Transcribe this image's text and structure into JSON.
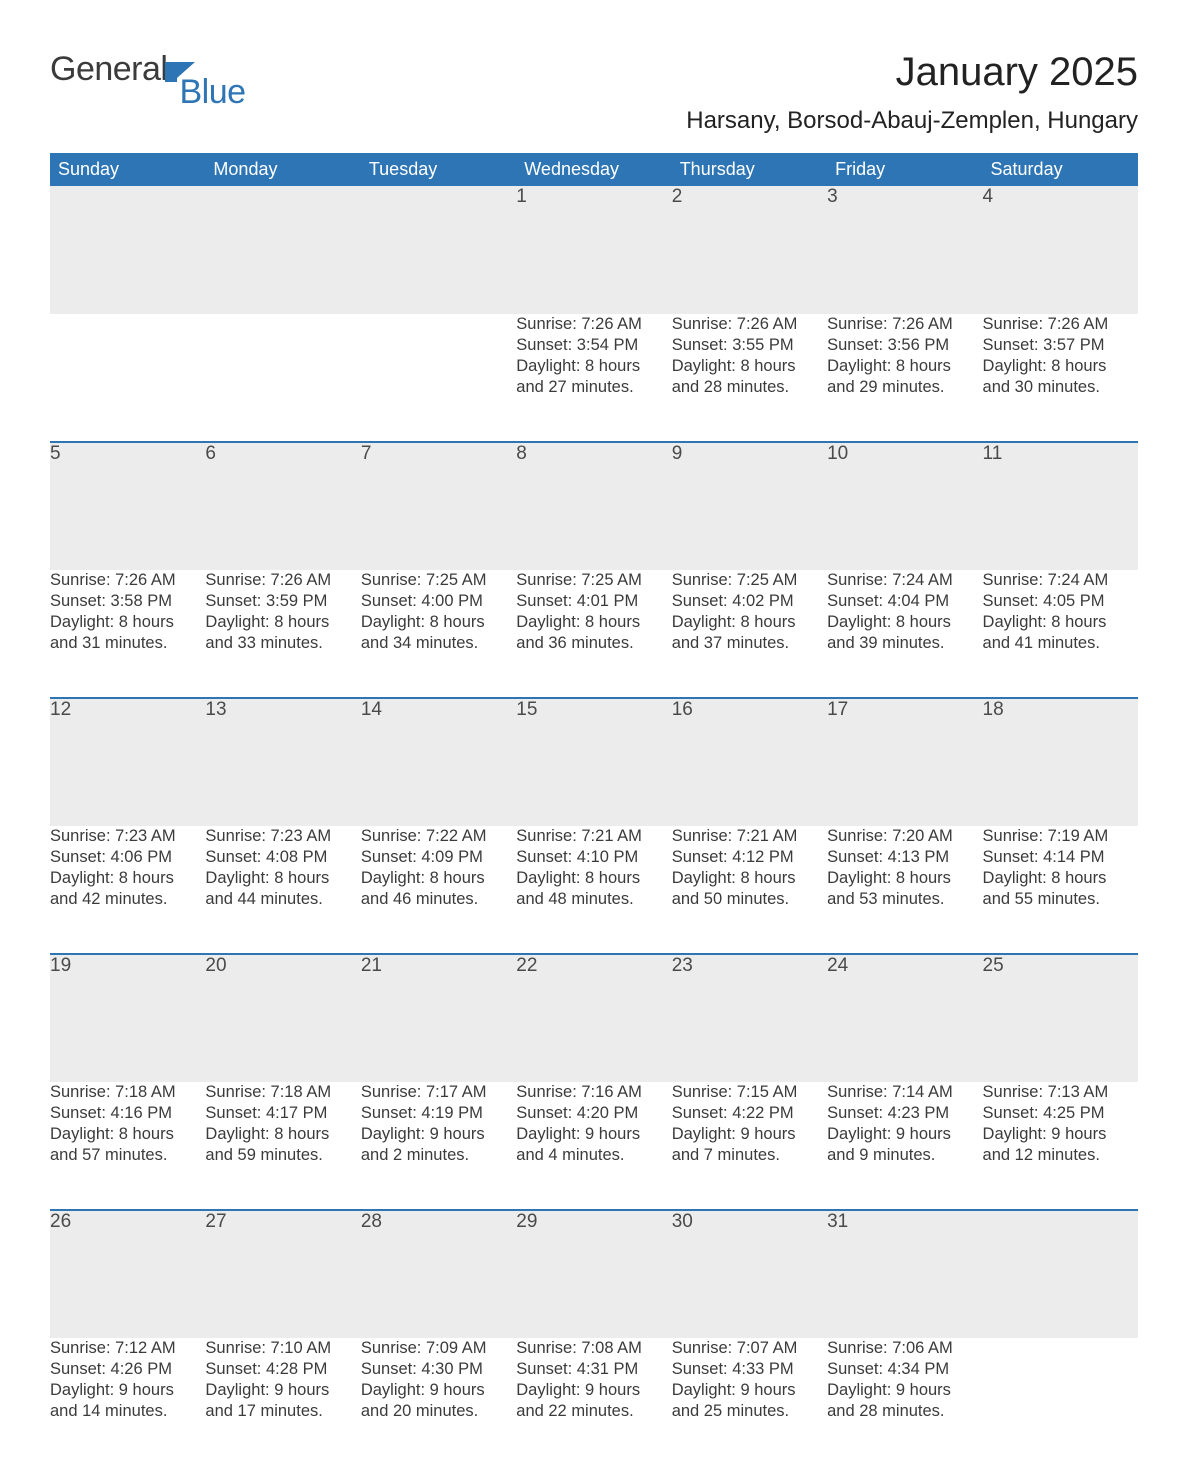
{
  "logo": {
    "word1": "General",
    "word2": "Blue",
    "icon_color": "#2d75b5"
  },
  "title": "January 2025",
  "location": "Harsany, Borsod-Abauj-Zemplen, Hungary",
  "colors": {
    "header_bg": "#2d75b5",
    "header_text": "#ffffff",
    "daynum_bg": "#ececec",
    "row_border": "#2d75b5",
    "body_text": "#3b3b3b",
    "page_bg": "#ffffff"
  },
  "day_headers": [
    "Sunday",
    "Monday",
    "Tuesday",
    "Wednesday",
    "Thursday",
    "Friday",
    "Saturday"
  ],
  "weeks": [
    [
      null,
      null,
      null,
      {
        "n": "1",
        "sr": "Sunrise: 7:26 AM",
        "ss": "Sunset: 3:54 PM",
        "d1": "Daylight: 8 hours",
        "d2": "and 27 minutes."
      },
      {
        "n": "2",
        "sr": "Sunrise: 7:26 AM",
        "ss": "Sunset: 3:55 PM",
        "d1": "Daylight: 8 hours",
        "d2": "and 28 minutes."
      },
      {
        "n": "3",
        "sr": "Sunrise: 7:26 AM",
        "ss": "Sunset: 3:56 PM",
        "d1": "Daylight: 8 hours",
        "d2": "and 29 minutes."
      },
      {
        "n": "4",
        "sr": "Sunrise: 7:26 AM",
        "ss": "Sunset: 3:57 PM",
        "d1": "Daylight: 8 hours",
        "d2": "and 30 minutes."
      }
    ],
    [
      {
        "n": "5",
        "sr": "Sunrise: 7:26 AM",
        "ss": "Sunset: 3:58 PM",
        "d1": "Daylight: 8 hours",
        "d2": "and 31 minutes."
      },
      {
        "n": "6",
        "sr": "Sunrise: 7:26 AM",
        "ss": "Sunset: 3:59 PM",
        "d1": "Daylight: 8 hours",
        "d2": "and 33 minutes."
      },
      {
        "n": "7",
        "sr": "Sunrise: 7:25 AM",
        "ss": "Sunset: 4:00 PM",
        "d1": "Daylight: 8 hours",
        "d2": "and 34 minutes."
      },
      {
        "n": "8",
        "sr": "Sunrise: 7:25 AM",
        "ss": "Sunset: 4:01 PM",
        "d1": "Daylight: 8 hours",
        "d2": "and 36 minutes."
      },
      {
        "n": "9",
        "sr": "Sunrise: 7:25 AM",
        "ss": "Sunset: 4:02 PM",
        "d1": "Daylight: 8 hours",
        "d2": "and 37 minutes."
      },
      {
        "n": "10",
        "sr": "Sunrise: 7:24 AM",
        "ss": "Sunset: 4:04 PM",
        "d1": "Daylight: 8 hours",
        "d2": "and 39 minutes."
      },
      {
        "n": "11",
        "sr": "Sunrise: 7:24 AM",
        "ss": "Sunset: 4:05 PM",
        "d1": "Daylight: 8 hours",
        "d2": "and 41 minutes."
      }
    ],
    [
      {
        "n": "12",
        "sr": "Sunrise: 7:23 AM",
        "ss": "Sunset: 4:06 PM",
        "d1": "Daylight: 8 hours",
        "d2": "and 42 minutes."
      },
      {
        "n": "13",
        "sr": "Sunrise: 7:23 AM",
        "ss": "Sunset: 4:08 PM",
        "d1": "Daylight: 8 hours",
        "d2": "and 44 minutes."
      },
      {
        "n": "14",
        "sr": "Sunrise: 7:22 AM",
        "ss": "Sunset: 4:09 PM",
        "d1": "Daylight: 8 hours",
        "d2": "and 46 minutes."
      },
      {
        "n": "15",
        "sr": "Sunrise: 7:21 AM",
        "ss": "Sunset: 4:10 PM",
        "d1": "Daylight: 8 hours",
        "d2": "and 48 minutes."
      },
      {
        "n": "16",
        "sr": "Sunrise: 7:21 AM",
        "ss": "Sunset: 4:12 PM",
        "d1": "Daylight: 8 hours",
        "d2": "and 50 minutes."
      },
      {
        "n": "17",
        "sr": "Sunrise: 7:20 AM",
        "ss": "Sunset: 4:13 PM",
        "d1": "Daylight: 8 hours",
        "d2": "and 53 minutes."
      },
      {
        "n": "18",
        "sr": "Sunrise: 7:19 AM",
        "ss": "Sunset: 4:14 PM",
        "d1": "Daylight: 8 hours",
        "d2": "and 55 minutes."
      }
    ],
    [
      {
        "n": "19",
        "sr": "Sunrise: 7:18 AM",
        "ss": "Sunset: 4:16 PM",
        "d1": "Daylight: 8 hours",
        "d2": "and 57 minutes."
      },
      {
        "n": "20",
        "sr": "Sunrise: 7:18 AM",
        "ss": "Sunset: 4:17 PM",
        "d1": "Daylight: 8 hours",
        "d2": "and 59 minutes."
      },
      {
        "n": "21",
        "sr": "Sunrise: 7:17 AM",
        "ss": "Sunset: 4:19 PM",
        "d1": "Daylight: 9 hours",
        "d2": "and 2 minutes."
      },
      {
        "n": "22",
        "sr": "Sunrise: 7:16 AM",
        "ss": "Sunset: 4:20 PM",
        "d1": "Daylight: 9 hours",
        "d2": "and 4 minutes."
      },
      {
        "n": "23",
        "sr": "Sunrise: 7:15 AM",
        "ss": "Sunset: 4:22 PM",
        "d1": "Daylight: 9 hours",
        "d2": "and 7 minutes."
      },
      {
        "n": "24",
        "sr": "Sunrise: 7:14 AM",
        "ss": "Sunset: 4:23 PM",
        "d1": "Daylight: 9 hours",
        "d2": "and 9 minutes."
      },
      {
        "n": "25",
        "sr": "Sunrise: 7:13 AM",
        "ss": "Sunset: 4:25 PM",
        "d1": "Daylight: 9 hours",
        "d2": "and 12 minutes."
      }
    ],
    [
      {
        "n": "26",
        "sr": "Sunrise: 7:12 AM",
        "ss": "Sunset: 4:26 PM",
        "d1": "Daylight: 9 hours",
        "d2": "and 14 minutes."
      },
      {
        "n": "27",
        "sr": "Sunrise: 7:10 AM",
        "ss": "Sunset: 4:28 PM",
        "d1": "Daylight: 9 hours",
        "d2": "and 17 minutes."
      },
      {
        "n": "28",
        "sr": "Sunrise: 7:09 AM",
        "ss": "Sunset: 4:30 PM",
        "d1": "Daylight: 9 hours",
        "d2": "and 20 minutes."
      },
      {
        "n": "29",
        "sr": "Sunrise: 7:08 AM",
        "ss": "Sunset: 4:31 PM",
        "d1": "Daylight: 9 hours",
        "d2": "and 22 minutes."
      },
      {
        "n": "30",
        "sr": "Sunrise: 7:07 AM",
        "ss": "Sunset: 4:33 PM",
        "d1": "Daylight: 9 hours",
        "d2": "and 25 minutes."
      },
      {
        "n": "31",
        "sr": "Sunrise: 7:06 AM",
        "ss": "Sunset: 4:34 PM",
        "d1": "Daylight: 9 hours",
        "d2": "and 28 minutes."
      },
      null
    ]
  ]
}
